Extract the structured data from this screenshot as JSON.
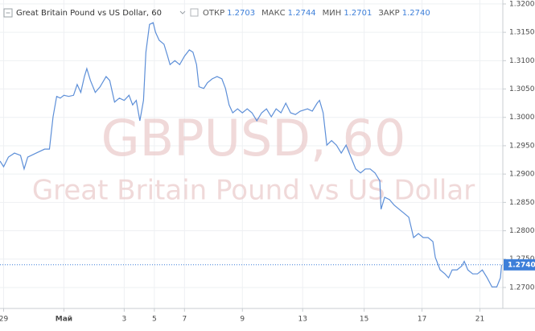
{
  "chart_data": {
    "type": "line",
    "title": "Great Britain Pound vs US Dollar, 60",
    "ohlc": [
      {
        "name": "ОТКР",
        "value": "1.2703"
      },
      {
        "name": "МАКС",
        "value": "1.2744"
      },
      {
        "name": "МИН",
        "value": "1.2701"
      },
      {
        "name": "ЗАКР",
        "value": "1.2740"
      }
    ],
    "watermark": [
      "GBPUSD, 60",
      "Great Britain Pound vs US Dollar"
    ],
    "color": "#5d8fd8",
    "grid": true,
    "xlim": [
      0,
      417
    ],
    "xticks": [
      {
        "value": 3,
        "label": "29"
      },
      {
        "value": 53,
        "label": "Май"
      },
      {
        "value": 103,
        "label": "3"
      },
      {
        "value": 128,
        "label": "5"
      },
      {
        "value": 153,
        "label": "7"
      },
      {
        "value": 201,
        "label": "9"
      },
      {
        "value": 251,
        "label": "13"
      },
      {
        "value": 302,
        "label": "15"
      },
      {
        "value": 350,
        "label": "17"
      },
      {
        "value": 398,
        "label": "21"
      }
    ],
    "ylim": [
      1.2663,
      1.3207
    ],
    "yticks": [
      {
        "value": 1.32,
        "label": "1.3200"
      },
      {
        "value": 1.315,
        "label": "1.3150"
      },
      {
        "value": 1.31,
        "label": "1.3100"
      },
      {
        "value": 1.305,
        "label": "1.3050"
      },
      {
        "value": 1.3,
        "label": "1.3000"
      },
      {
        "value": 1.295,
        "label": "1.2950"
      },
      {
        "value": 1.29,
        "label": "1.2900"
      },
      {
        "value": 1.285,
        "label": "1.2850"
      },
      {
        "value": 1.28,
        "label": "1.2800"
      },
      {
        "value": 1.275,
        "label": "1.2750"
      },
      {
        "value": 1.27,
        "label": "1.2700"
      }
    ],
    "last_price": {
      "value": 1.274,
      "label": "1.2740"
    },
    "x": [
      0,
      3,
      7,
      12,
      17,
      20,
      23,
      30,
      37,
      41,
      44,
      47,
      50,
      53,
      57,
      61,
      64,
      67,
      70,
      72,
      75,
      79,
      83,
      88,
      91,
      95,
      99,
      103,
      107,
      110,
      113,
      116,
      119,
      121,
      124,
      127,
      129,
      132,
      136,
      139,
      141,
      145,
      149,
      153,
      157,
      160,
      163,
      165,
      169,
      172,
      176,
      180,
      184,
      187,
      190,
      193,
      197,
      201,
      205,
      209,
      213,
      217,
      221,
      225,
      229,
      233,
      237,
      241,
      245,
      249,
      255,
      259,
      263,
      265,
      268,
      271,
      275,
      279,
      283,
      287,
      291,
      295,
      299,
      303,
      307,
      311,
      315,
      316,
      319,
      323,
      327,
      331,
      335,
      339,
      343,
      347,
      351,
      355,
      359,
      361,
      365,
      369,
      372,
      375,
      379,
      383,
      385,
      388,
      392,
      396,
      400,
      404,
      408,
      412,
      415,
      416
    ],
    "values": [
      1.2923,
      1.2913,
      1.293,
      1.2937,
      1.2933,
      1.2909,
      1.293,
      1.2937,
      1.2944,
      1.2944,
      1.3001,
      1.3037,
      1.3034,
      1.3039,
      1.3037,
      1.3039,
      1.3058,
      1.3044,
      1.3072,
      1.3086,
      1.3065,
      1.3044,
      1.3054,
      1.3072,
      1.3065,
      1.3027,
      1.3034,
      1.303,
      1.3039,
      1.3022,
      1.303,
      1.2994,
      1.303,
      1.3115,
      1.3164,
      1.3167,
      1.315,
      1.3136,
      1.3129,
      1.3108,
      1.3093,
      1.31,
      1.3093,
      1.3108,
      1.3119,
      1.3115,
      1.3093,
      1.3054,
      1.3051,
      1.3061,
      1.3068,
      1.3072,
      1.3068,
      1.3051,
      1.3022,
      1.3008,
      1.3015,
      1.3008,
      1.3015,
      1.3008,
      1.2994,
      1.3008,
      1.3015,
      1.3001,
      1.3015,
      1.3008,
      1.3025,
      1.3008,
      1.3005,
      1.3011,
      1.3015,
      1.3011,
      1.3025,
      1.303,
      1.3008,
      1.2951,
      1.2959,
      1.2951,
      1.2937,
      1.2951,
      1.293,
      1.2909,
      1.2902,
      1.2909,
      1.2909,
      1.2902,
      1.2888,
      1.2838,
      1.2859,
      1.2855,
      1.2845,
      1.2838,
      1.2831,
      1.2824,
      1.2788,
      1.2795,
      1.2788,
      1.2788,
      1.2781,
      1.2753,
      1.2731,
      1.2724,
      1.2717,
      1.2731,
      1.2731,
      1.2738,
      1.2746,
      1.2731,
      1.2724,
      1.2724,
      1.2731,
      1.2717,
      1.2701,
      1.2701,
      1.2717,
      1.274
    ]
  }
}
